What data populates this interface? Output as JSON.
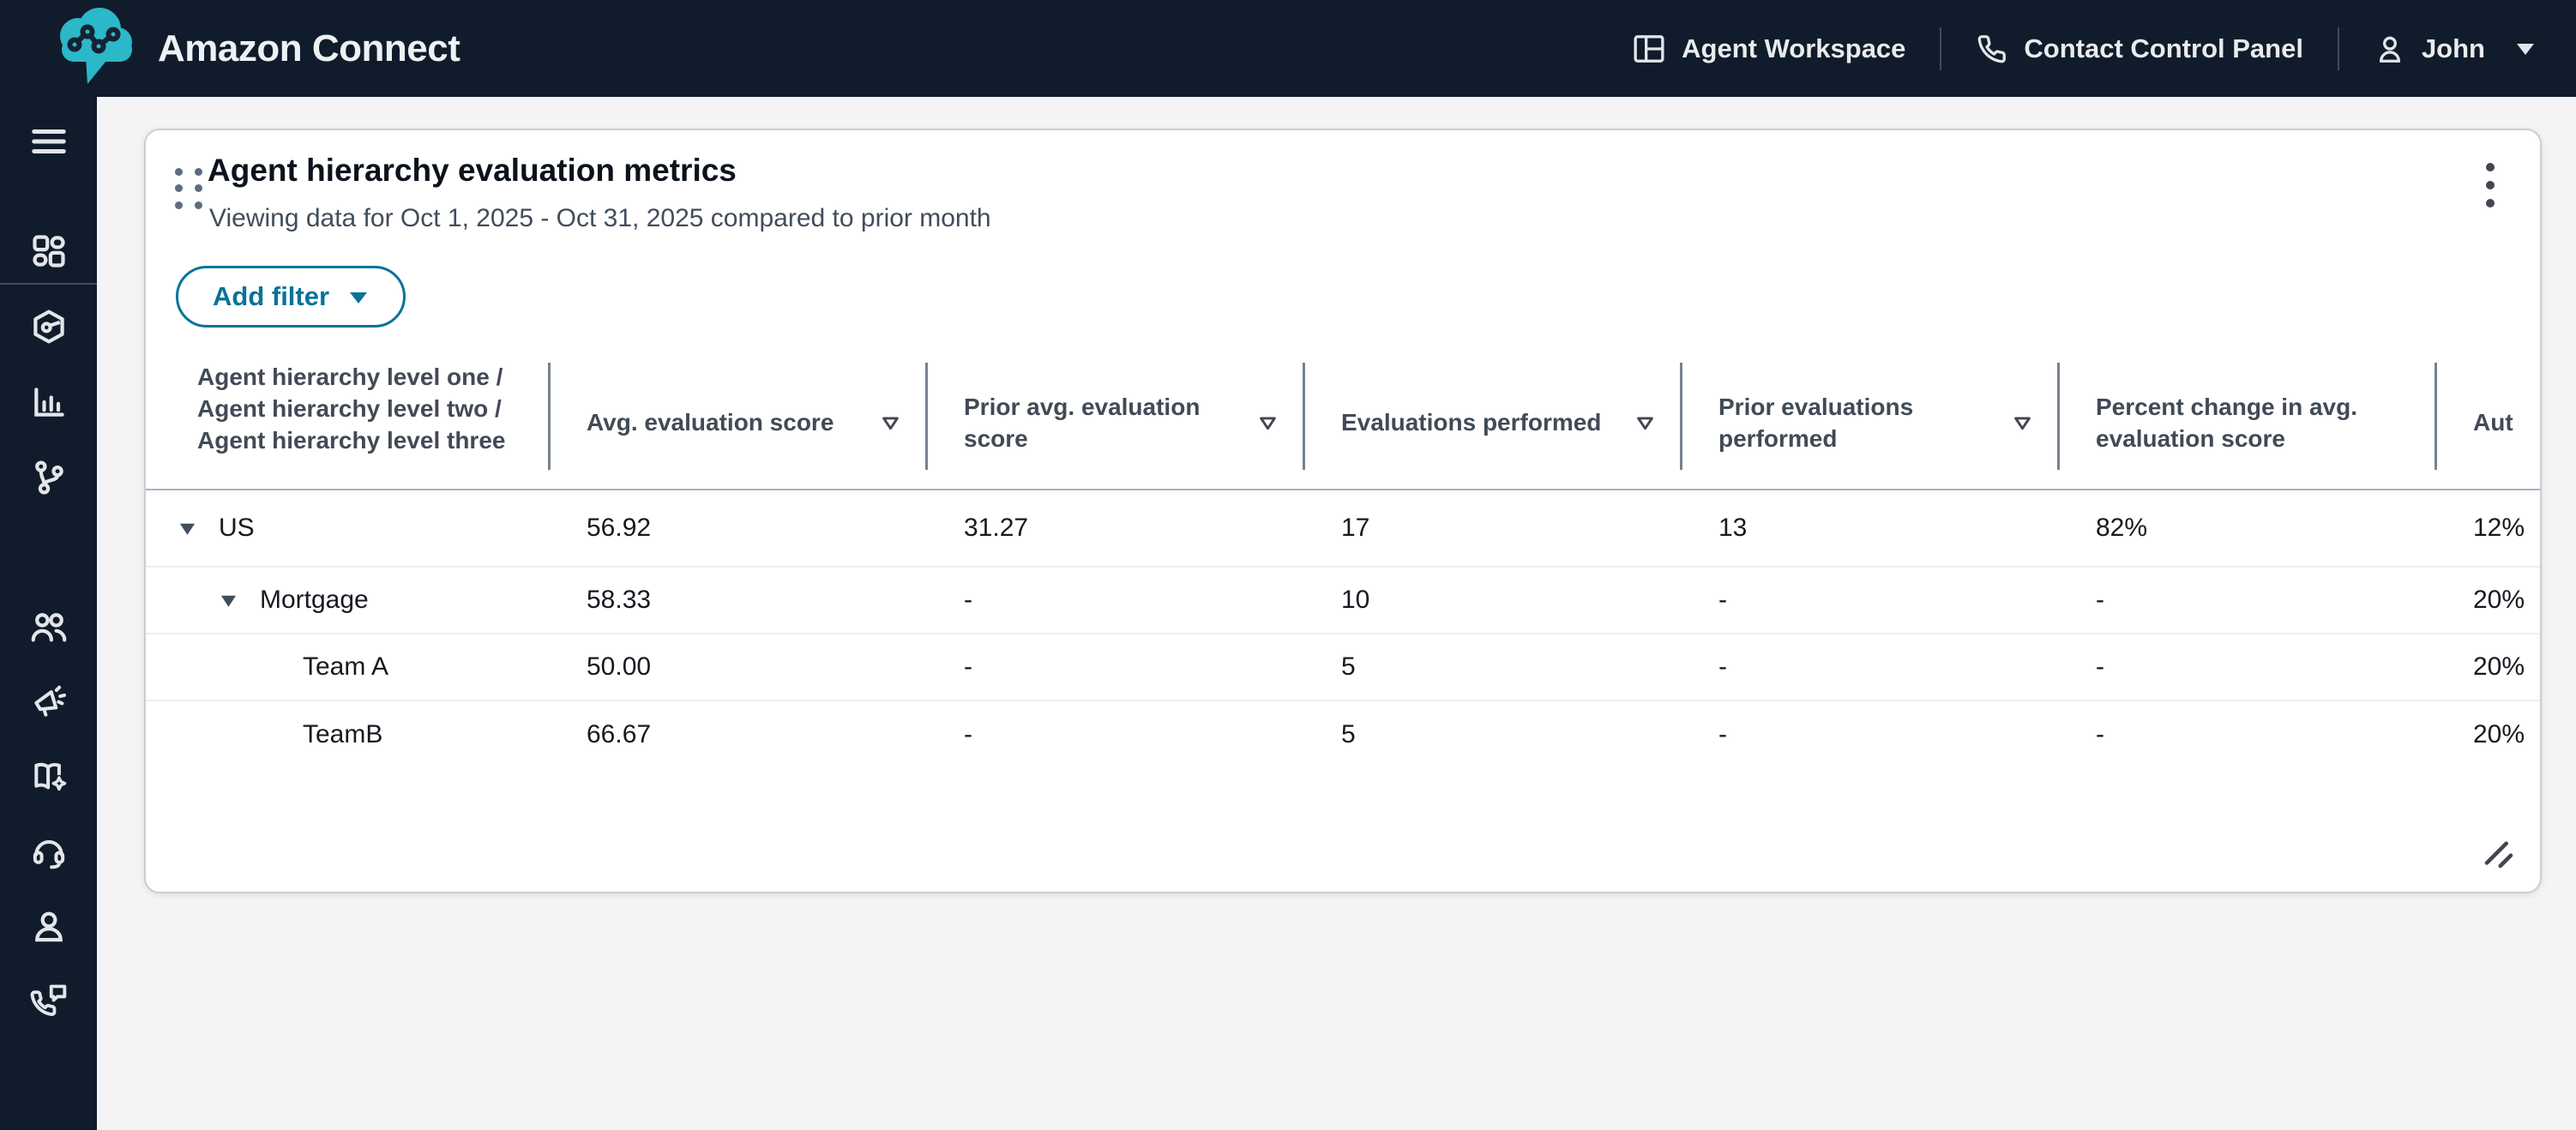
{
  "topnav": {
    "brand": "Amazon Connect",
    "items": [
      {
        "label": "Agent Workspace",
        "icon": "workspace-icon"
      },
      {
        "label": "Contact Control Panel",
        "icon": "phone-icon"
      },
      {
        "label": "John",
        "icon": "user-icon"
      }
    ]
  },
  "sidebar": {
    "items": [
      {
        "name": "hamburger-menu"
      },
      {
        "name": "apps-grid"
      },
      {
        "name": "hexagon-gauge"
      },
      {
        "name": "bar-chart"
      },
      {
        "name": "branch-routing"
      },
      {
        "name": "users"
      },
      {
        "name": "megaphone"
      },
      {
        "name": "book-sparkle"
      },
      {
        "name": "headset"
      },
      {
        "name": "person"
      },
      {
        "name": "phone-message"
      }
    ]
  },
  "card": {
    "title": "Agent hierarchy evaluation metrics",
    "subtitle": "Viewing data for Oct 1, 2025 - Oct 31, 2025 compared to prior month",
    "add_filter_label": "Add filter"
  },
  "table": {
    "columns": [
      {
        "label": "Agent hierarchy level one / Agent hierarchy level two / Agent hierarchy level three",
        "sortable": false
      },
      {
        "label": "Avg. evaluation score",
        "sortable": true
      },
      {
        "label": "Prior avg. evaluation score",
        "sortable": true
      },
      {
        "label": "Evaluations performed",
        "sortable": true
      },
      {
        "label": "Prior evaluations performed",
        "sortable": true
      },
      {
        "label": "Percent change in avg. evaluation score",
        "sortable": false
      },
      {
        "label": "Aut",
        "sortable": false
      }
    ],
    "rows": [
      {
        "name": "US",
        "level": 1,
        "expandable": true,
        "values": [
          "56.92",
          "31.27",
          "17",
          "13",
          "82%",
          "12%"
        ]
      },
      {
        "name": "Mortgage",
        "level": 2,
        "expandable": true,
        "values": [
          "58.33",
          "-",
          "10",
          "-",
          "-",
          "20%"
        ]
      },
      {
        "name": "Team A",
        "level": 3,
        "expandable": false,
        "values": [
          "50.00",
          "-",
          "5",
          "-",
          "-",
          "20%"
        ]
      },
      {
        "name": "TeamB",
        "level": 3,
        "expandable": false,
        "values": [
          "66.67",
          "-",
          "5",
          "-",
          "-",
          "20%"
        ]
      }
    ]
  },
  "colors": {
    "chrome_bg": "#101c2b",
    "logo_teal": "#2bb8c8",
    "accent": "#077398",
    "page_bg": "#f4f4f5",
    "header_text": "#424a57",
    "body_text": "#16191f",
    "subtitle_text": "#414d5c"
  }
}
